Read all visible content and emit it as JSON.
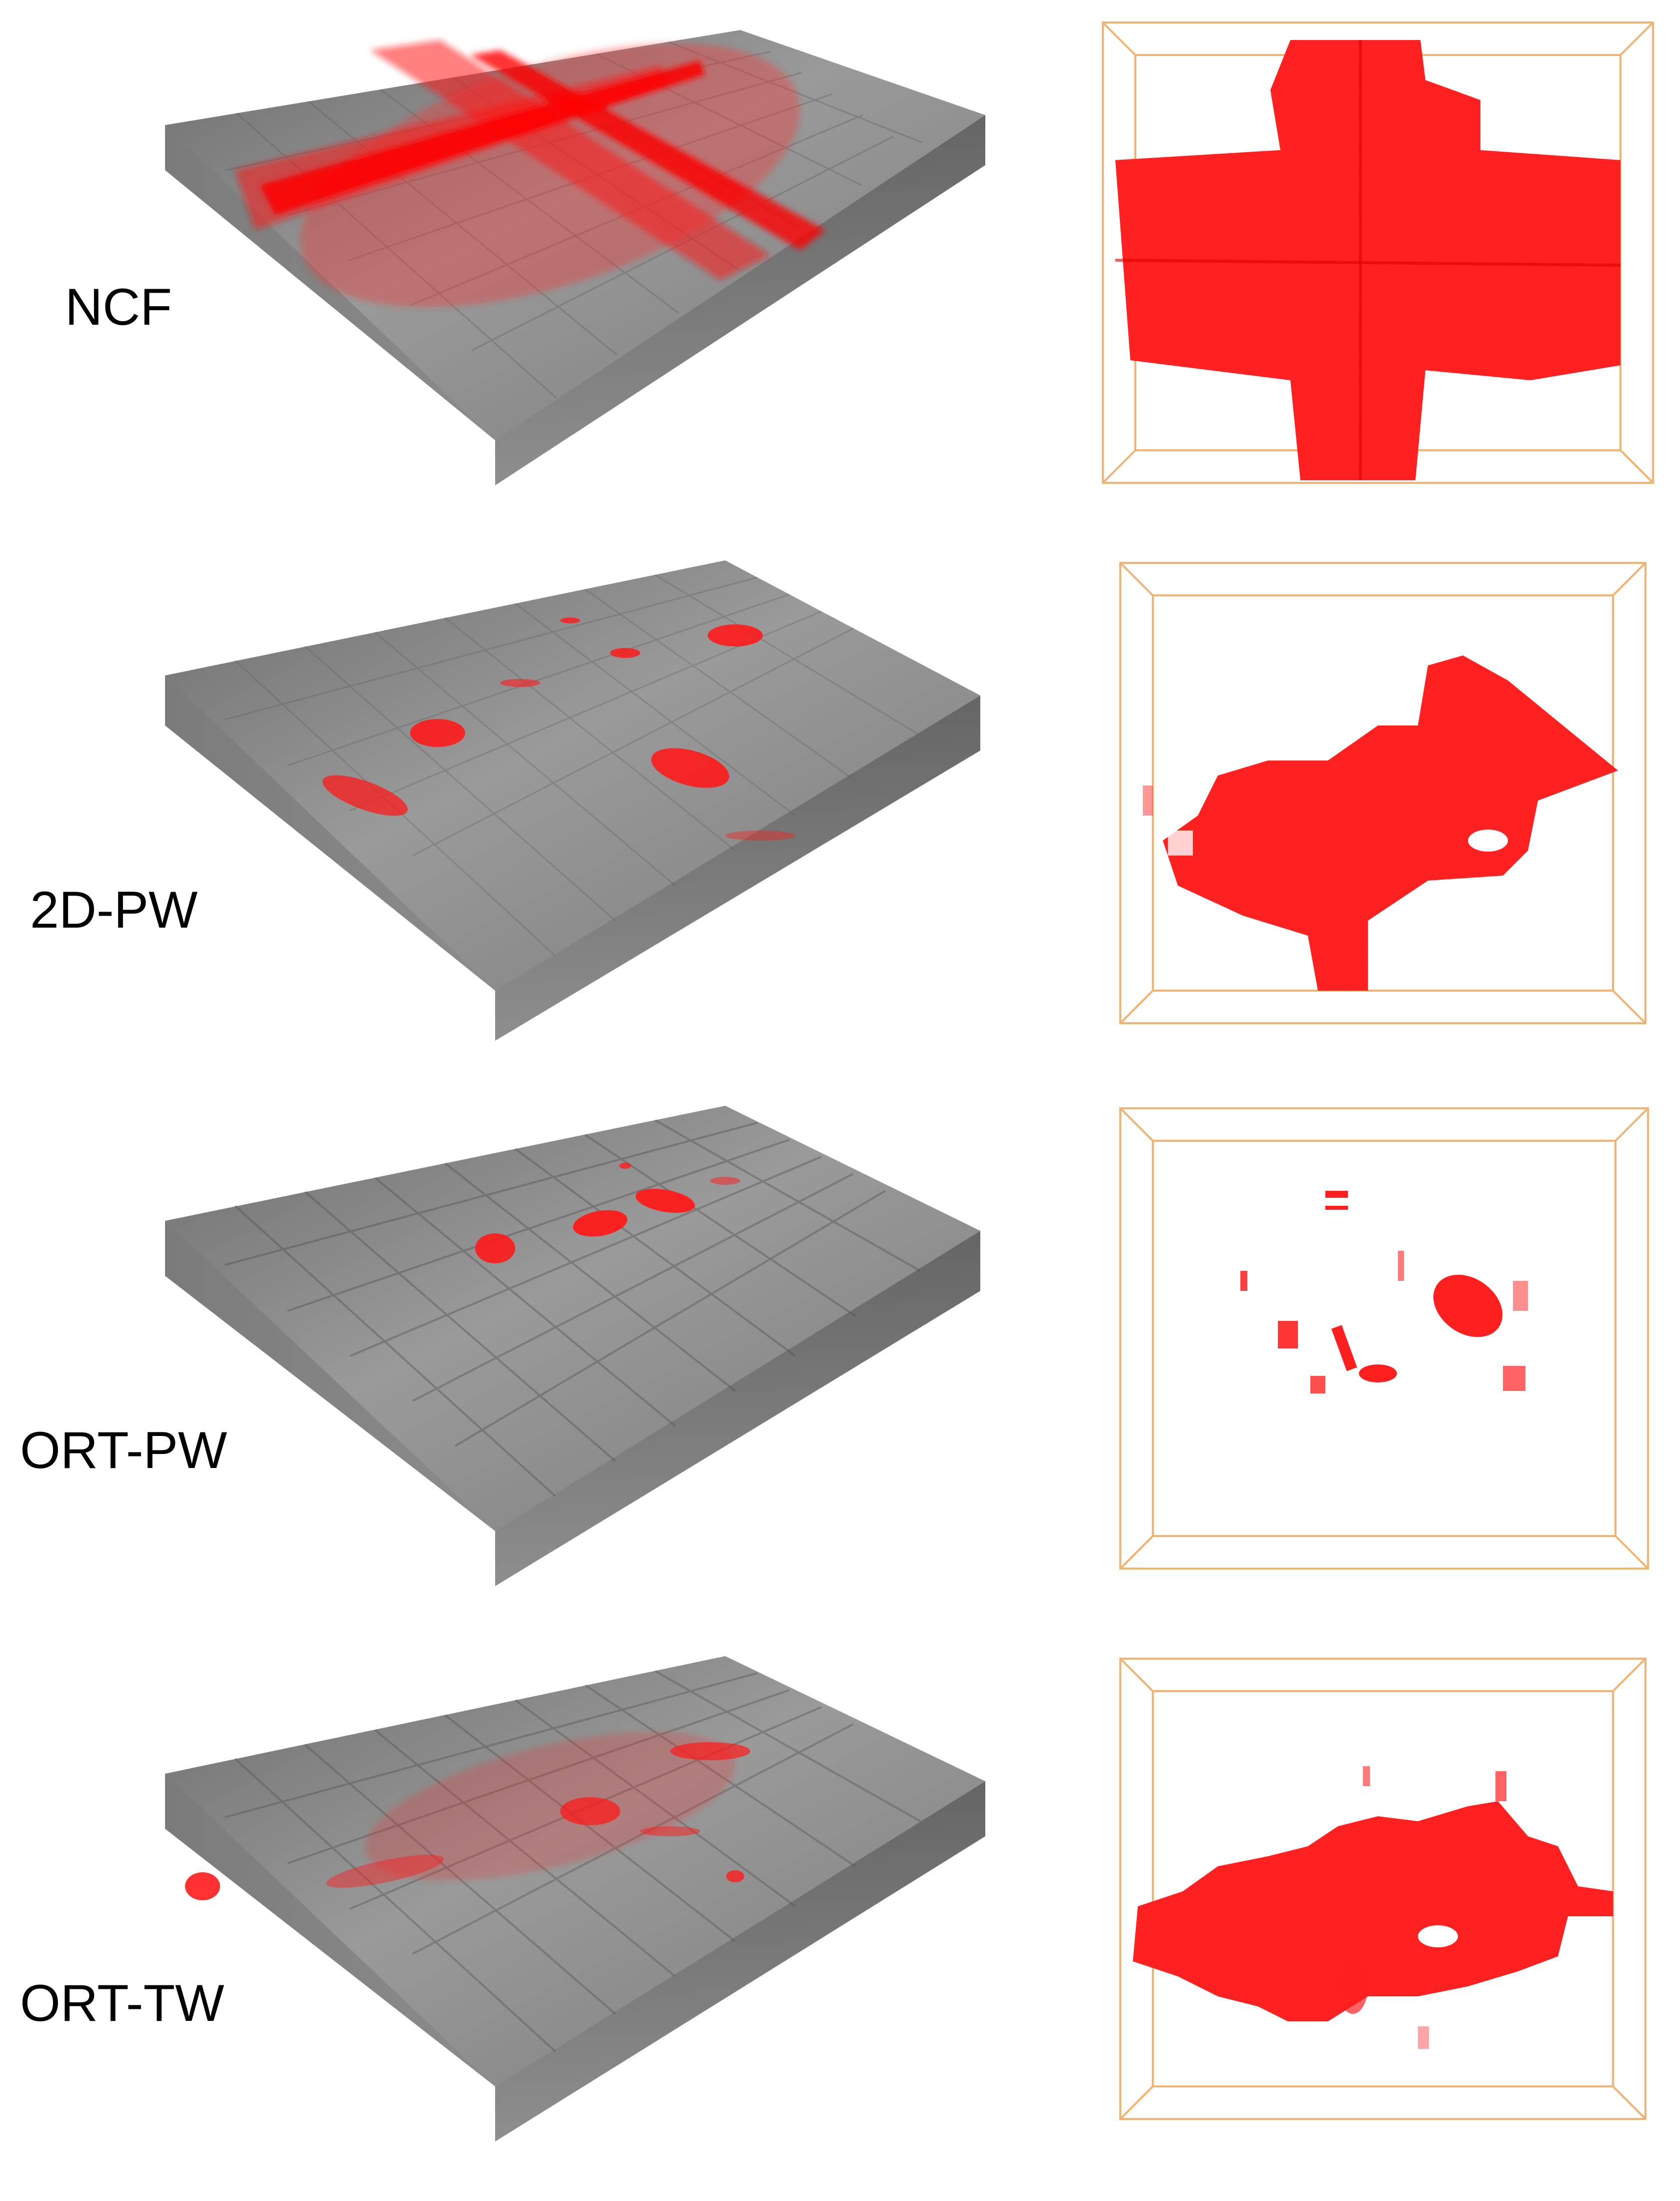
{
  "panels": [
    {
      "id": "ncf",
      "label": "NCF",
      "damage_color": "#ff1a1a",
      "slab_color": "#8a8a8a",
      "frame_color": "#f2b272"
    },
    {
      "id": "2d-pw",
      "label": "2D-PW",
      "damage_color": "#ff1a1a",
      "slab_color": "#8a8a8a",
      "frame_color": "#f2b272"
    },
    {
      "id": "ort-pw",
      "label": "ORT-PW",
      "damage_color": "#ff1a1a",
      "slab_color": "#8a8a8a",
      "frame_color": "#f2b272"
    },
    {
      "id": "ort-tw",
      "label": "ORT-TW",
      "damage_color": "#ff1a1a",
      "slab_color": "#8a8a8a",
      "frame_color": "#f2b272"
    }
  ]
}
